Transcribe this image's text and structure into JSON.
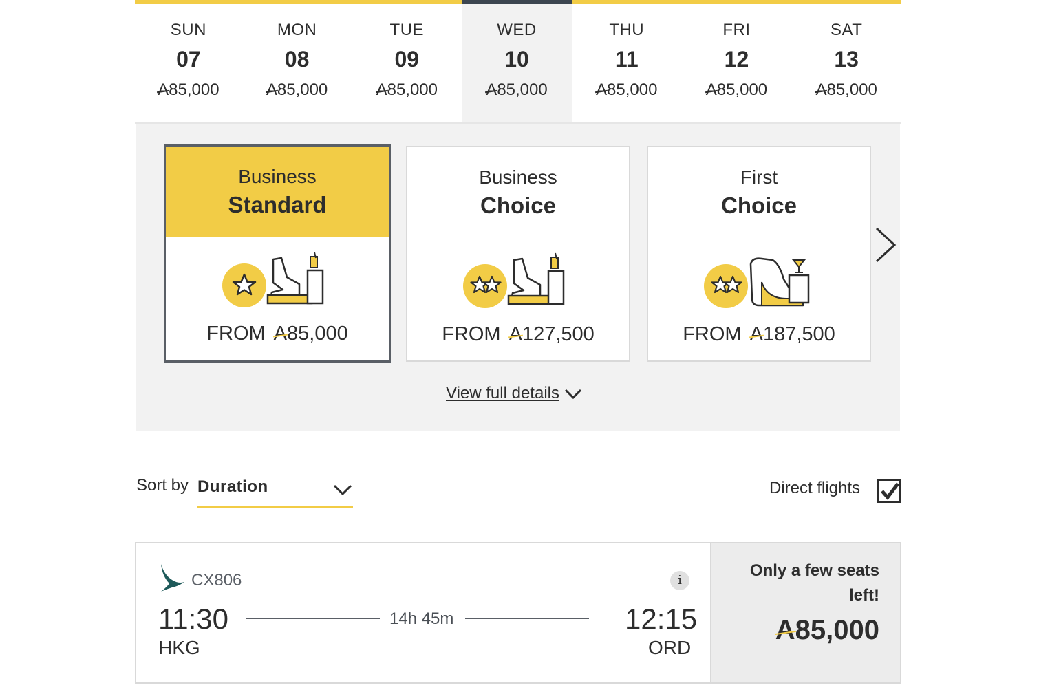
{
  "currency_symbol": "A",
  "dates": [
    {
      "dow": "SUN",
      "dom": "07",
      "price": "85,000",
      "selected": false
    },
    {
      "dow": "MON",
      "dom": "08",
      "price": "85,000",
      "selected": false
    },
    {
      "dow": "TUE",
      "dom": "09",
      "price": "85,000",
      "selected": false
    },
    {
      "dow": "WED",
      "dom": "10",
      "price": "85,000",
      "selected": true
    },
    {
      "dow": "THU",
      "dom": "11",
      "price": "85,000",
      "selected": false
    },
    {
      "dow": "FRI",
      "dom": "12",
      "price": "85,000",
      "selected": false
    },
    {
      "dow": "SAT",
      "dom": "13",
      "price": "85,000",
      "selected": false
    }
  ],
  "fares": [
    {
      "cabin": "Business",
      "tier": "Standard",
      "from_label": "FROM",
      "price": "85,000",
      "selected": true,
      "stars": 1
    },
    {
      "cabin": "Business",
      "tier": "Choice",
      "from_label": "FROM",
      "price": "127,500",
      "selected": false,
      "stars": 2
    },
    {
      "cabin": "First",
      "tier": "Choice",
      "from_label": "FROM",
      "price": "187,500",
      "selected": false,
      "stars": 2
    }
  ],
  "view_details_label": "View full details",
  "sort": {
    "label": "Sort by",
    "value": "Duration"
  },
  "direct": {
    "label": "Direct flights",
    "checked": true
  },
  "flight": {
    "number": "CX806",
    "dep_time": "11:30",
    "dep_code": "HKG",
    "duration": "14h 45m",
    "arr_time": "12:15",
    "arr_code": "ORD",
    "availability": "Only a few seats left!",
    "price": "85,000",
    "info": "i"
  },
  "colors": {
    "accent": "#f2cc46",
    "dark": "#3c4650",
    "panel": "#f2f2f2",
    "brand_green": "#1e5a5a"
  }
}
